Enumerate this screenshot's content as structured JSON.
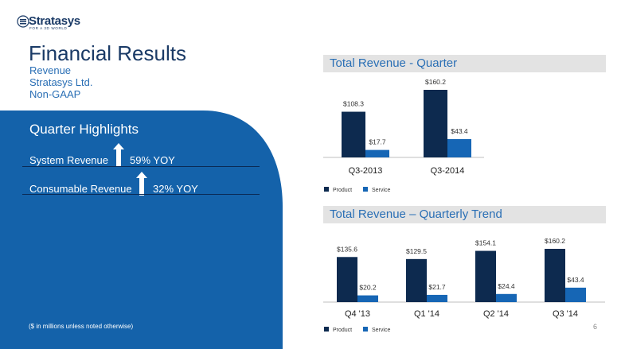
{
  "logo": {
    "name": "Stratasys",
    "tagline": "FOR A 3D WORLD"
  },
  "page_title": "Financial Results",
  "subtitle_lines": [
    "Revenue",
    "Stratasys Ltd.",
    "Non-GAAP"
  ],
  "highlights": {
    "title": "Quarter Highlights",
    "items": [
      {
        "label": "System Revenue",
        "value": "59% YOY"
      },
      {
        "label": "Consumable Revenue",
        "value": "32% YOY"
      }
    ]
  },
  "footnote": "($ in millions unless noted otherwise)",
  "page_number": "6",
  "colors": {
    "product": "#0d2a4f",
    "service": "#1666b5",
    "panel": "#1462aa"
  },
  "chart_data": [
    {
      "type": "bar",
      "title": "Total Revenue - Quarter",
      "categories": [
        "Q3-2013",
        "Q3-2014"
      ],
      "series": [
        {
          "name": "Product",
          "values": [
            108.3,
            160.2
          ],
          "labels": [
            "$108.3",
            "$160.2"
          ]
        },
        {
          "name": "Service",
          "values": [
            17.7,
            43.4
          ],
          "labels": [
            "$17.7",
            "$43.4"
          ]
        }
      ],
      "legend_position": "bottom-left"
    },
    {
      "type": "bar",
      "title": "Total Revenue – Quarterly Trend",
      "categories": [
        "Q4 '13",
        "Q1 '14",
        "Q2 '14",
        "Q3 '14"
      ],
      "series": [
        {
          "name": "Product",
          "values": [
            135.6,
            129.5,
            154.1,
            160.2
          ],
          "labels": [
            "$135.6",
            "$129.5",
            "$154.1",
            "$160.2"
          ]
        },
        {
          "name": "Service",
          "values": [
            20.2,
            21.7,
            24.4,
            43.4
          ],
          "labels": [
            "$20.2",
            "$21.7",
            "$24.4",
            "$43.4"
          ]
        }
      ],
      "legend_position": "bottom-left"
    }
  ]
}
